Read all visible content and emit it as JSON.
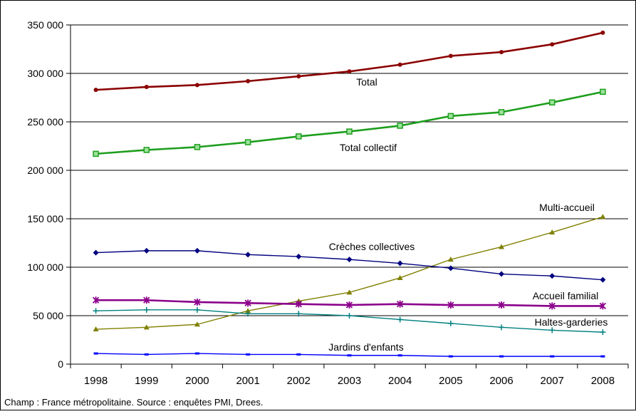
{
  "chart_data": {
    "type": "line",
    "x": [
      1998,
      1999,
      2000,
      2001,
      2002,
      2003,
      2004,
      2005,
      2006,
      2007,
      2008
    ],
    "x_tick_labels": [
      "1998",
      "1999",
      "2000",
      "2001",
      "2002",
      "2003",
      "2004",
      "2005",
      "2006",
      "2007",
      "2008"
    ],
    "ylim": [
      0,
      350000
    ],
    "y_ticks": [
      0,
      50000,
      100000,
      150000,
      200000,
      250000,
      300000,
      350000
    ],
    "y_tick_labels": [
      "0",
      "50 000",
      "100 000",
      "150 000",
      "200 000",
      "250 000",
      "300 000",
      "350 000"
    ],
    "grid": "horizontal",
    "series": [
      {
        "name": "Total",
        "color": "#8b0000",
        "marker": "circle",
        "values": [
          283000,
          286000,
          288000,
          292000,
          297000,
          302000,
          309000,
          318000,
          322000,
          330000,
          342000
        ]
      },
      {
        "name": "Total collectif",
        "color": "#1e9e1e",
        "marker": "square",
        "values": [
          217000,
          221000,
          224000,
          229000,
          235000,
          240000,
          246000,
          256000,
          260000,
          270000,
          281000
        ]
      },
      {
        "name": "Multi-accueil",
        "color": "#808000",
        "marker": "triangle",
        "values": [
          36000,
          38000,
          41000,
          55000,
          65000,
          74000,
          89000,
          108000,
          121000,
          136000,
          152000
        ]
      },
      {
        "name": "Crèches collectives",
        "color": "#00007f",
        "marker": "diamond",
        "values": [
          115000,
          117000,
          117000,
          113000,
          111000,
          108000,
          104000,
          99000,
          93000,
          91000,
          87000
        ]
      },
      {
        "name": "Accueil familial",
        "color": "#8b008b",
        "marker": "star",
        "values": [
          66000,
          66000,
          64000,
          63000,
          62000,
          61000,
          62000,
          61000,
          61000,
          60000,
          60000
        ]
      },
      {
        "name": "Haltes-garderies",
        "color": "#008080",
        "marker": "plus",
        "values": [
          55000,
          56000,
          56000,
          52000,
          52000,
          50000,
          46000,
          42000,
          38000,
          35000,
          33000
        ]
      },
      {
        "name": "Jardins d'enfants",
        "color": "#0000ff",
        "marker": "dash",
        "values": [
          11000,
          10000,
          11000,
          10000,
          10000,
          9000,
          9000,
          8000,
          8000,
          8000,
          8000
        ]
      }
    ]
  },
  "footnote": "Champ : France métropolitaine. Source : enquêtes  PMI, Drees."
}
